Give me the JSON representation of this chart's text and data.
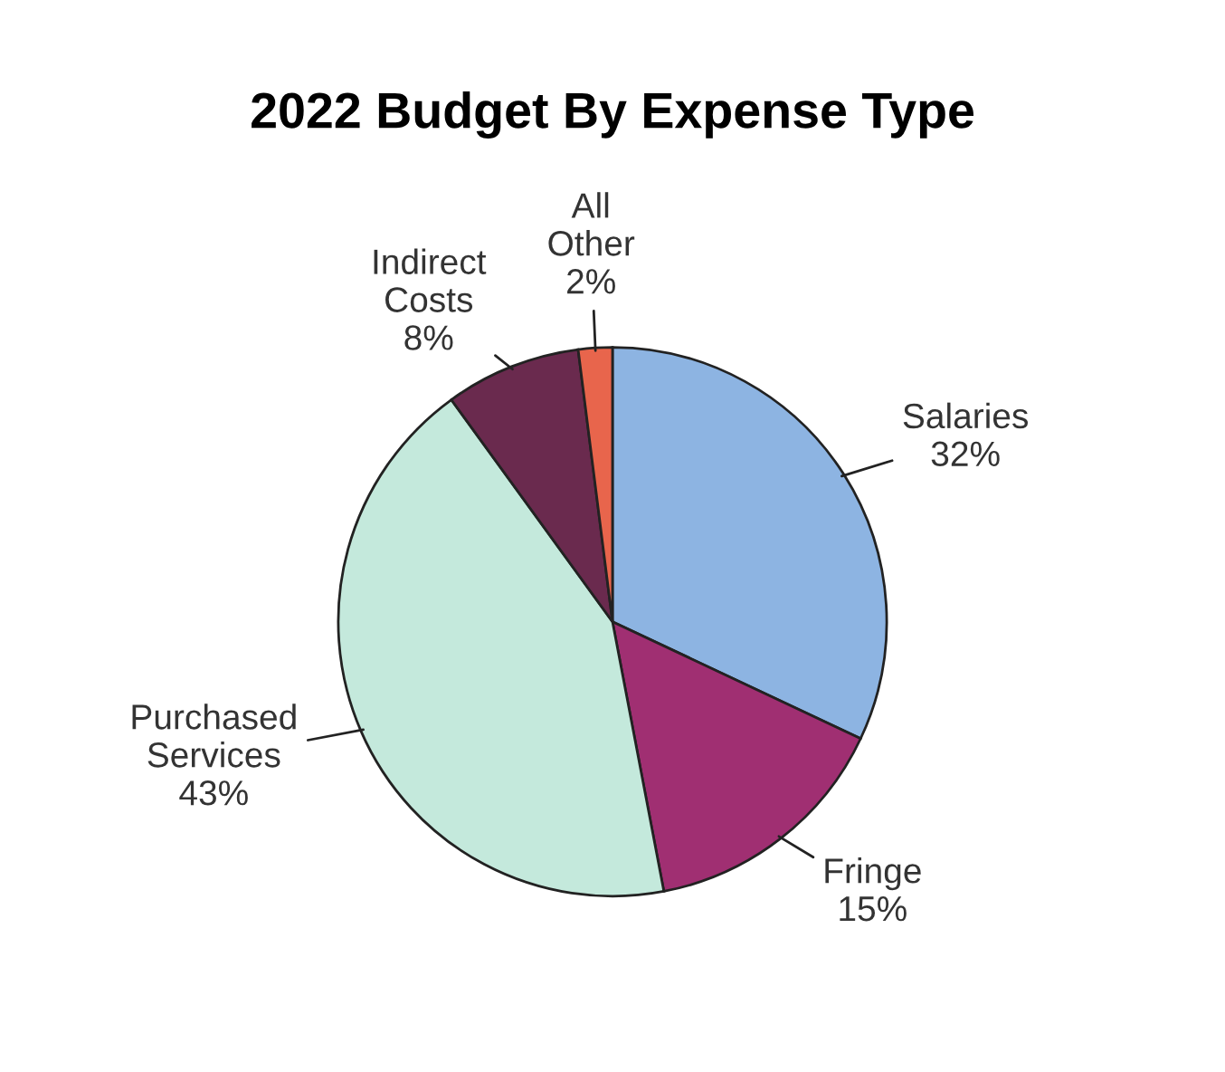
{
  "chart_data": {
    "type": "pie",
    "title": "2022 Budget By Expense Type",
    "categories": [
      "Salaries",
      "Fringe",
      "Purchased Services",
      "Indirect Costs",
      "All Other"
    ],
    "values": [
      32,
      15,
      43,
      8,
      2
    ],
    "colors": [
      "#8db4e2",
      "#a02f72",
      "#c4e9dc",
      "#6a2a4e",
      "#e8654c"
    ],
    "value_labels": [
      "32%",
      "15%",
      "43%",
      "8%",
      "2%"
    ]
  }
}
